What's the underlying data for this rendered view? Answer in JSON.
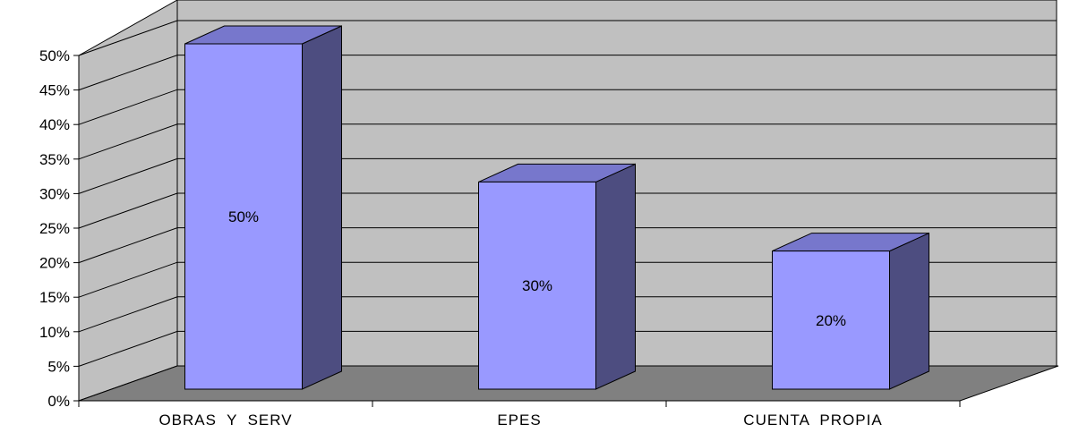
{
  "chart_data": {
    "type": "bar",
    "style": "3d-column",
    "categories": [
      "OBRAS  Y  SERV",
      "EPES",
      "CUENTA  PROPIA"
    ],
    "values": [
      50,
      30,
      20
    ],
    "data_labels": [
      "50%",
      "30%",
      "20%"
    ],
    "ylim": [
      0,
      50
    ],
    "y_ticks": [
      "0%",
      "5%",
      "10%",
      "15%",
      "20%",
      "25%",
      "30%",
      "35%",
      "40%",
      "45%",
      "50%"
    ],
    "grid": true,
    "legend": "none"
  },
  "colors": {
    "wall": "#c0c0c0",
    "floor": "#808080",
    "bar_front": "#9999ff",
    "bar_top": "#7777cc",
    "bar_side": "#4d4d80",
    "gridline": "#000000"
  }
}
